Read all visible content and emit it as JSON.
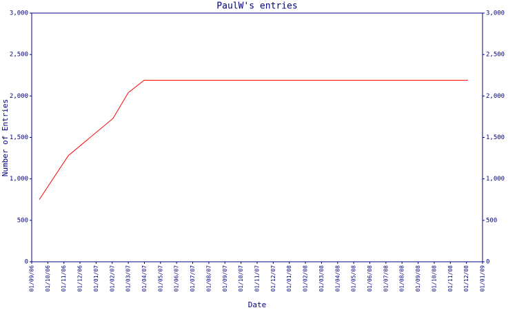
{
  "chart_data": {
    "type": "line",
    "title": "PaulW's entries",
    "xlabel": "Date",
    "ylabel": "Number of Entries",
    "x": [
      0.47,
      2.27,
      5.05,
      6,
      6.98,
      27.1
    ],
    "values": [
      750,
      1280,
      1730,
      2040,
      2190,
      2190
    ],
    "color": "#ff0000",
    "axis_color": "#000080",
    "xlim": [
      0,
      28
    ],
    "xticks": [
      {
        "value": 0,
        "label": "01/09/06"
      },
      {
        "value": 1,
        "label": "01/10/06"
      },
      {
        "value": 2,
        "label": "01/11/06"
      },
      {
        "value": 3,
        "label": "01/12/06"
      },
      {
        "value": 4,
        "label": "01/01/07"
      },
      {
        "value": 5,
        "label": "01/02/07"
      },
      {
        "value": 6,
        "label": "01/03/07"
      },
      {
        "value": 7,
        "label": "01/04/07"
      },
      {
        "value": 8,
        "label": "01/05/07"
      },
      {
        "value": 9,
        "label": "01/06/07"
      },
      {
        "value": 10,
        "label": "01/07/07"
      },
      {
        "value": 11,
        "label": "01/08/07"
      },
      {
        "value": 12,
        "label": "01/09/07"
      },
      {
        "value": 13,
        "label": "01/10/07"
      },
      {
        "value": 14,
        "label": "01/11/07"
      },
      {
        "value": 15,
        "label": "01/12/07"
      },
      {
        "value": 16,
        "label": "01/01/08"
      },
      {
        "value": 17,
        "label": "01/02/08"
      },
      {
        "value": 18,
        "label": "01/03/08"
      },
      {
        "value": 19,
        "label": "01/04/08"
      },
      {
        "value": 20,
        "label": "01/05/08"
      },
      {
        "value": 21,
        "label": "01/06/08"
      },
      {
        "value": 22,
        "label": "01/07/08"
      },
      {
        "value": 23,
        "label": "01/08/08"
      },
      {
        "value": 24,
        "label": "01/09/08"
      },
      {
        "value": 25,
        "label": "01/10/08"
      },
      {
        "value": 26,
        "label": "01/11/08"
      },
      {
        "value": 27,
        "label": "01/12/08"
      },
      {
        "value": 28,
        "label": "01/01/09"
      }
    ],
    "ylim": [
      0,
      3000
    ],
    "yticks": [
      0,
      500,
      {
        "value": 1000,
        "label": "1,000"
      },
      {
        "value": 1500,
        "label": "1,500"
      },
      {
        "value": 2000,
        "label": "2,000"
      },
      {
        "value": 2500,
        "label": "2,500"
      },
      {
        "value": 3000,
        "label": "3,000"
      }
    ],
    "y2lim": [
      0,
      3000
    ],
    "y2ticks": [
      0,
      500,
      {
        "value": 1000,
        "label": "1,000"
      },
      {
        "value": 1500,
        "label": "1,500"
      },
      {
        "value": 2000,
        "label": "2,000"
      },
      {
        "value": 2500,
        "label": "2,500"
      },
      {
        "value": 3000,
        "label": "3,000"
      }
    ]
  }
}
